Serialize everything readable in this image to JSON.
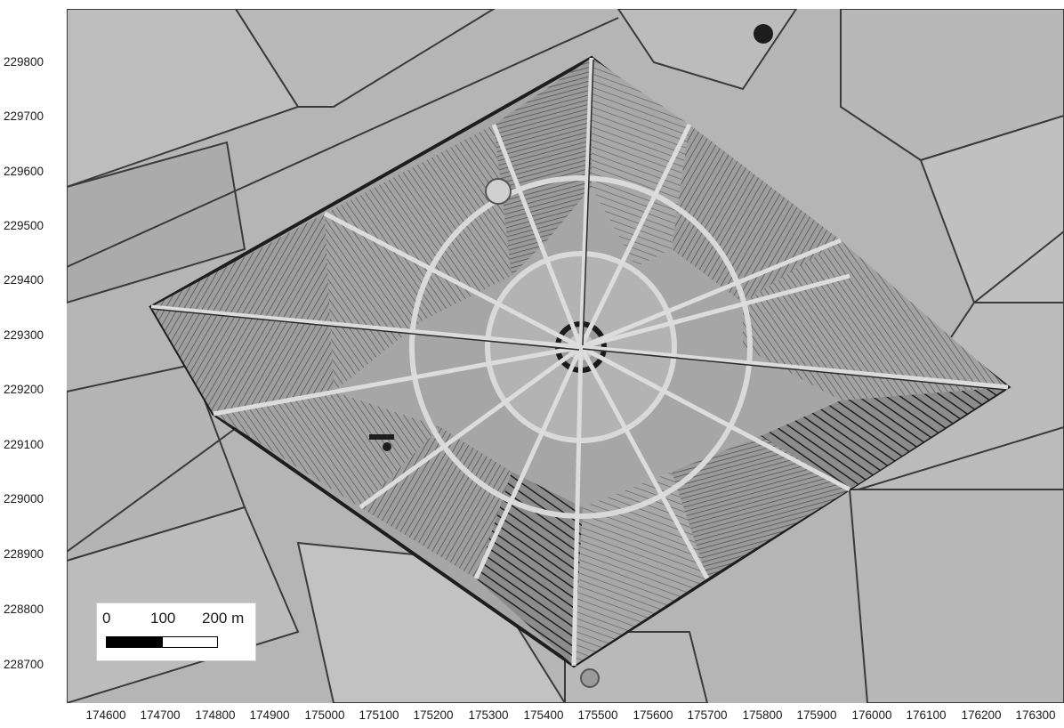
{
  "map": {
    "y_axis_ticks": [
      "229800",
      "229700",
      "229600",
      "229500",
      "229400",
      "229300",
      "229200",
      "229100",
      "229000",
      "228900",
      "228800",
      "228700"
    ],
    "x_axis_ticks": [
      "174600",
      "174700",
      "174800",
      "174900",
      "175000",
      "175100",
      "175200",
      "175300",
      "175400",
      "175500",
      "175600",
      "175700",
      "175800",
      "175900",
      "176000",
      "176100",
      "176200",
      "176300"
    ],
    "scale_bar": {
      "labels": [
        "0",
        "100",
        "200 m"
      ],
      "segment_colors": [
        "#000000",
        "#ffffff"
      ]
    },
    "colors": {
      "terrain": "#b3b3b3",
      "paths": "#d6d6d6",
      "field_edges": "#2a2a2a"
    }
  }
}
